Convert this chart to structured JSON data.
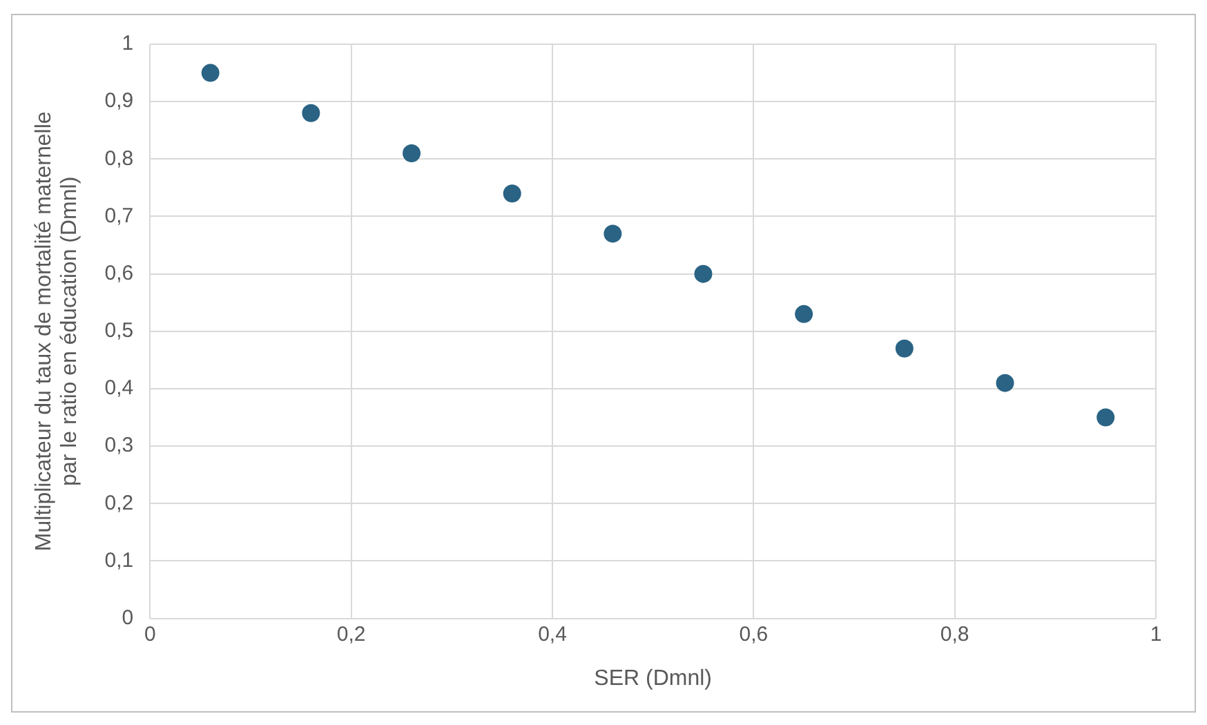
{
  "chart_data": {
    "type": "scatter",
    "xlabel": "SER (Dmnl)",
    "ylabel": "Multiplicateur du taux de mortalité maternelle par le ratio en éducation (Dmnl)",
    "x": [
      0.06,
      0.16,
      0.26,
      0.36,
      0.46,
      0.55,
      0.65,
      0.75,
      0.85,
      0.95
    ],
    "series": [
      {
        "color": "#2a6384",
        "values": [
          0.95,
          0.88,
          0.81,
          0.74,
          0.67,
          0.6,
          0.53,
          0.47,
          0.41,
          0.35
        ]
      }
    ],
    "xlim": [
      0,
      1
    ],
    "xticks": [
      0,
      {
        "value": 0.2,
        "label": "0,2"
      },
      {
        "value": 0.4,
        "label": "0,4"
      },
      {
        "value": 0.6,
        "label": "0,6"
      },
      {
        "value": 0.8,
        "label": "0,8"
      },
      1
    ],
    "ylim": [
      0,
      1
    ],
    "yticks": [
      0,
      {
        "value": 0.1,
        "label": "0,1"
      },
      {
        "value": 0.2,
        "label": "0,2"
      },
      {
        "value": 0.3,
        "label": "0,3"
      },
      {
        "value": 0.4,
        "label": "0,4"
      },
      {
        "value": 0.5,
        "label": "0,5"
      },
      {
        "value": 0.6,
        "label": "0,6"
      },
      {
        "value": 0.7,
        "label": "0,7"
      },
      {
        "value": 0.8,
        "label": "0,8"
      },
      {
        "value": 0.9,
        "label": "0,9"
      },
      1
    ],
    "grid": true,
    "marker": "circle",
    "legend": false
  }
}
